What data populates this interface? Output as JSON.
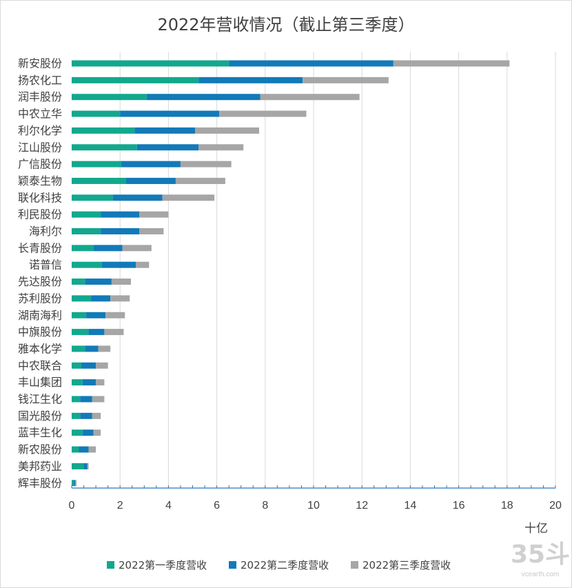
{
  "chart_data": {
    "type": "bar",
    "orientation": "horizontal",
    "stacked": true,
    "title": "2022年营收情况（截止第三季度）",
    "unit_label": "十亿",
    "xlim": [
      0,
      20
    ],
    "x_ticks": [
      0,
      2,
      4,
      6,
      8,
      10,
      12,
      14,
      16,
      18,
      20
    ],
    "grid": true,
    "legend_position": "bottom",
    "categories": [
      "新安股份",
      "扬农化工",
      "润丰股份",
      "中农立华",
      "利尔化学",
      "江山股份",
      "广信股份",
      "颖泰生物",
      "联化科技",
      "利民股份",
      "海利尔",
      "长青股份",
      "诺普信",
      "先达股份",
      "苏利股份",
      "湖南海利",
      "中旗股份",
      "雅本化学",
      "中农联合",
      "丰山集团",
      "钱江生化",
      "国光股份",
      "蓝丰生化",
      "新农股份",
      "美邦药业",
      "辉丰股份"
    ],
    "series": [
      {
        "name": "2022第一季度营收",
        "color": "#12a88e",
        "values": [
          6.5,
          5.25,
          3.1,
          2.0,
          2.6,
          2.7,
          2.05,
          2.25,
          1.7,
          1.2,
          1.2,
          0.9,
          1.25,
          0.55,
          0.8,
          0.6,
          0.7,
          0.55,
          0.4,
          0.45,
          0.35,
          0.35,
          0.45,
          0.3,
          0.5,
          0.1
        ]
      },
      {
        "name": "2022第二季度营收",
        "color": "#127ab8",
        "values": [
          6.8,
          4.3,
          4.7,
          4.1,
          2.5,
          2.55,
          2.45,
          2.05,
          2.05,
          1.6,
          1.6,
          1.2,
          1.4,
          1.1,
          0.8,
          0.8,
          0.65,
          0.55,
          0.6,
          0.55,
          0.5,
          0.5,
          0.45,
          0.4,
          0.15,
          0.05
        ]
      },
      {
        "name": "2022第三季度营收",
        "color": "#a6a6a6",
        "values": [
          4.8,
          3.55,
          4.1,
          3.6,
          2.65,
          1.85,
          2.1,
          2.05,
          2.15,
          1.2,
          1.0,
          1.2,
          0.55,
          0.8,
          0.8,
          0.8,
          0.8,
          0.5,
          0.5,
          0.35,
          0.5,
          0.35,
          0.3,
          0.3,
          0.05,
          0.05
        ]
      }
    ]
  },
  "watermark": {
    "logo": "35斗",
    "site": "vcearth.com"
  }
}
